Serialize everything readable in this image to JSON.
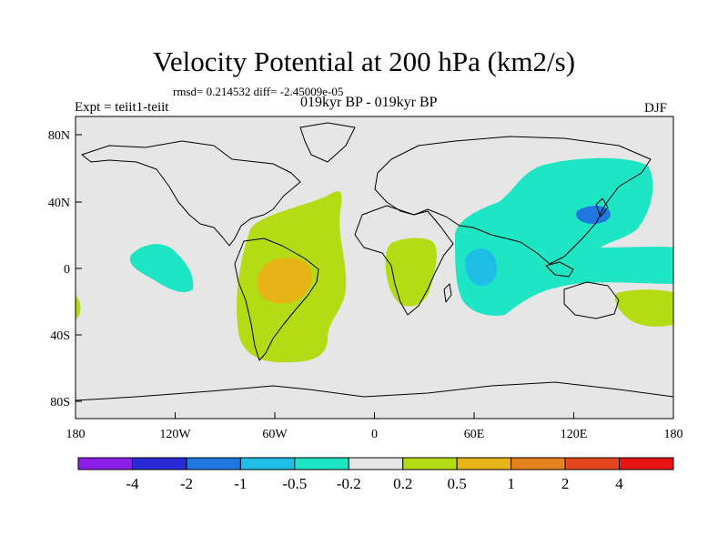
{
  "header": {
    "title": "Velocity Potential at 200 hPa (km2/s)",
    "stats": "rmsd= 0.214532 diff= -2.45009e-05",
    "experiment": "Expt = teiit1-teiit",
    "period": "019kyr BP - 019kyr BP",
    "season": "DJF"
  },
  "axes": {
    "lat_labels": [
      "80N",
      "40N",
      "0",
      "40S",
      "80S"
    ],
    "lon_labels": [
      "180",
      "120W",
      "60W",
      "0",
      "60E",
      "120E",
      "180"
    ]
  },
  "colorbar": {
    "colors": [
      "#8a1ee6",
      "#2a2ad6",
      "#1e78e0",
      "#1ebee6",
      "#1ee6c4",
      "#e6e6e6",
      "#b4dc14",
      "#e6b414",
      "#e6821e",
      "#e6461e",
      "#e61414"
    ],
    "labels": [
      "-4",
      "-2",
      "-1",
      "-0.5",
      "-0.2",
      "0.2",
      "0.5",
      "1",
      "2",
      "4"
    ]
  },
  "map": {
    "background": "#e6e6e6",
    "coastline": "#000000"
  }
}
